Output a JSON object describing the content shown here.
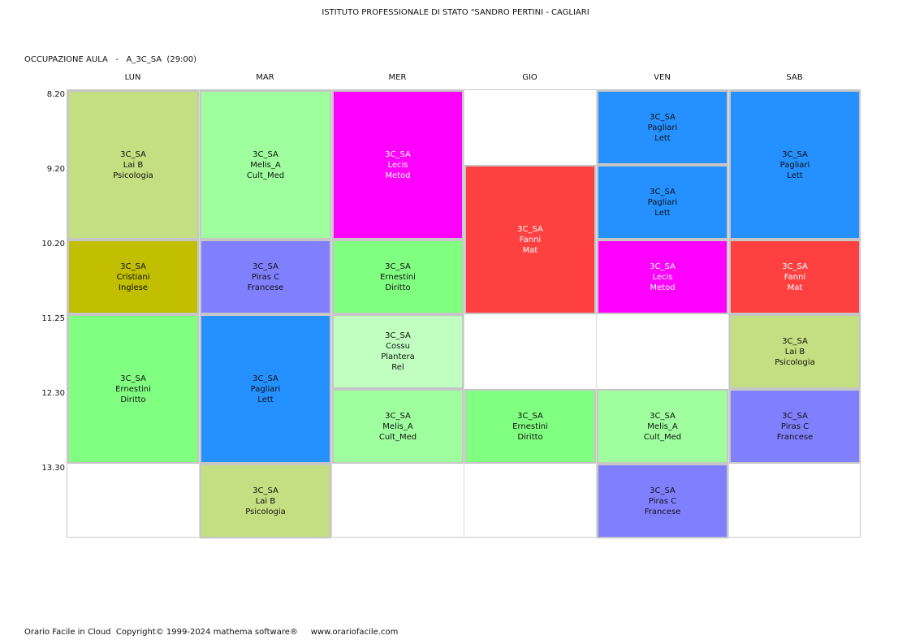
{
  "header": {
    "title": "ISTITUTO PROFESSIONALE DI STATO \"SANDRO PERTINI - CAGLIARI",
    "room_caption": "OCCUPAZIONE AULA   -   A_3C_SA  (29:00)"
  },
  "days": [
    "LUN",
    "MAR",
    "MER",
    "GIO",
    "VEN",
    "SAB"
  ],
  "times": [
    "8.20",
    "9.20",
    "10.20",
    "11.25",
    "12.30",
    "13.30"
  ],
  "lessons": [
    {
      "day": "LUN",
      "start": 0,
      "span": 2,
      "lines": [
        "3C_SA",
        "Lai B",
        "Psicologia"
      ],
      "color": "#c3df81",
      "text_color": "#111111"
    },
    {
      "day": "LUN",
      "start": 2,
      "span": 1,
      "lines": [
        "3C_SA",
        "Cristiani",
        "Inglese"
      ],
      "color": "#c1bf00",
      "text_color": "#111111"
    },
    {
      "day": "LUN",
      "start": 3,
      "span": 2,
      "lines": [
        "3C_SA",
        "Ernestini",
        "Diritto"
      ],
      "color": "#80ff80",
      "text_color": "#111111"
    },
    {
      "day": "MAR",
      "start": 0,
      "span": 2,
      "lines": [
        "3C_SA",
        "Melis_A",
        "Cult_Med"
      ],
      "color": "#9fff9f",
      "text_color": "#111111"
    },
    {
      "day": "MAR",
      "start": 2,
      "span": 1,
      "lines": [
        "3C_SA",
        "Piras C",
        "Francese"
      ],
      "color": "#8080ff",
      "text_color": "#111111"
    },
    {
      "day": "MAR",
      "start": 3,
      "span": 2,
      "lines": [
        "3C_SA",
        "Pagliari",
        "Lett"
      ],
      "color": "#2590ff",
      "text_color": "#111111"
    },
    {
      "day": "MAR",
      "start": 5,
      "span": 1,
      "lines": [
        "3C_SA",
        "Lai B",
        "Psicologia"
      ],
      "color": "#c3df81",
      "text_color": "#111111"
    },
    {
      "day": "MER",
      "start": 0,
      "span": 2,
      "lines": [
        "3C_SA",
        "Lecis",
        "Metod"
      ],
      "color": "#ff00ff",
      "text_color": "#ffffff"
    },
    {
      "day": "MER",
      "start": 2,
      "span": 1,
      "lines": [
        "3C_SA",
        "Ernestini",
        "Diritto"
      ],
      "color": "#80ff80",
      "text_color": "#111111"
    },
    {
      "day": "MER",
      "start": 3,
      "span": 1,
      "lines": [
        "3C_SA",
        "Cossu",
        "Plantera",
        "Rel"
      ],
      "color": "#c0ffc0",
      "text_color": "#111111"
    },
    {
      "day": "MER",
      "start": 4,
      "span": 1,
      "lines": [
        "3C_SA",
        "Melis_A",
        "Cult_Med"
      ],
      "color": "#9fff9f",
      "text_color": "#111111"
    },
    {
      "day": "GIO",
      "start": 1,
      "span": 2,
      "lines": [
        "3C_SA",
        "Fanni",
        "Mat"
      ],
      "color": "#ff4040",
      "text_color": "#ffffff"
    },
    {
      "day": "GIO",
      "start": 4,
      "span": 1,
      "lines": [
        "3C_SA",
        "Ernestini",
        "Diritto"
      ],
      "color": "#80ff80",
      "text_color": "#111111"
    },
    {
      "day": "VEN",
      "start": 0,
      "span": 1,
      "lines": [
        "3C_SA",
        "Pagliari",
        "Lett"
      ],
      "color": "#2590ff",
      "text_color": "#111111"
    },
    {
      "day": "VEN",
      "start": 1,
      "span": 1,
      "lines": [
        "3C_SA",
        "Pagliari",
        "Lett"
      ],
      "color": "#2590ff",
      "text_color": "#111111"
    },
    {
      "day": "VEN",
      "start": 2,
      "span": 1,
      "lines": [
        "3C_SA",
        "Lecis",
        "Metod"
      ],
      "color": "#ff00ff",
      "text_color": "#ffffff"
    },
    {
      "day": "VEN",
      "start": 4,
      "span": 1,
      "lines": [
        "3C_SA",
        "Melis_A",
        "Cult_Med"
      ],
      "color": "#9fff9f",
      "text_color": "#111111"
    },
    {
      "day": "VEN",
      "start": 5,
      "span": 1,
      "lines": [
        "3C_SA",
        "Piras C",
        "Francese"
      ],
      "color": "#8080ff",
      "text_color": "#111111"
    },
    {
      "day": "SAB",
      "start": 0,
      "span": 2,
      "lines": [
        "3C_SA",
        "Pagliari",
        "Lett"
      ],
      "color": "#2590ff",
      "text_color": "#111111"
    },
    {
      "day": "SAB",
      "start": 2,
      "span": 1,
      "lines": [
        "3C_SA",
        "Fanni",
        "Mat"
      ],
      "color": "#ff4040",
      "text_color": "#ffffff"
    },
    {
      "day": "SAB",
      "start": 3,
      "span": 1,
      "lines": [
        "3C_SA",
        "Lai B",
        "Psicologia"
      ],
      "color": "#c3df81",
      "text_color": "#111111"
    },
    {
      "day": "SAB",
      "start": 4,
      "span": 1,
      "lines": [
        "3C_SA",
        "Piras C",
        "Francese"
      ],
      "color": "#8080ff",
      "text_color": "#111111"
    }
  ],
  "footer": {
    "text": "Orario Facile in Cloud  Copyright© 1999-2024 mathema software®     www.orariofacile.com"
  }
}
